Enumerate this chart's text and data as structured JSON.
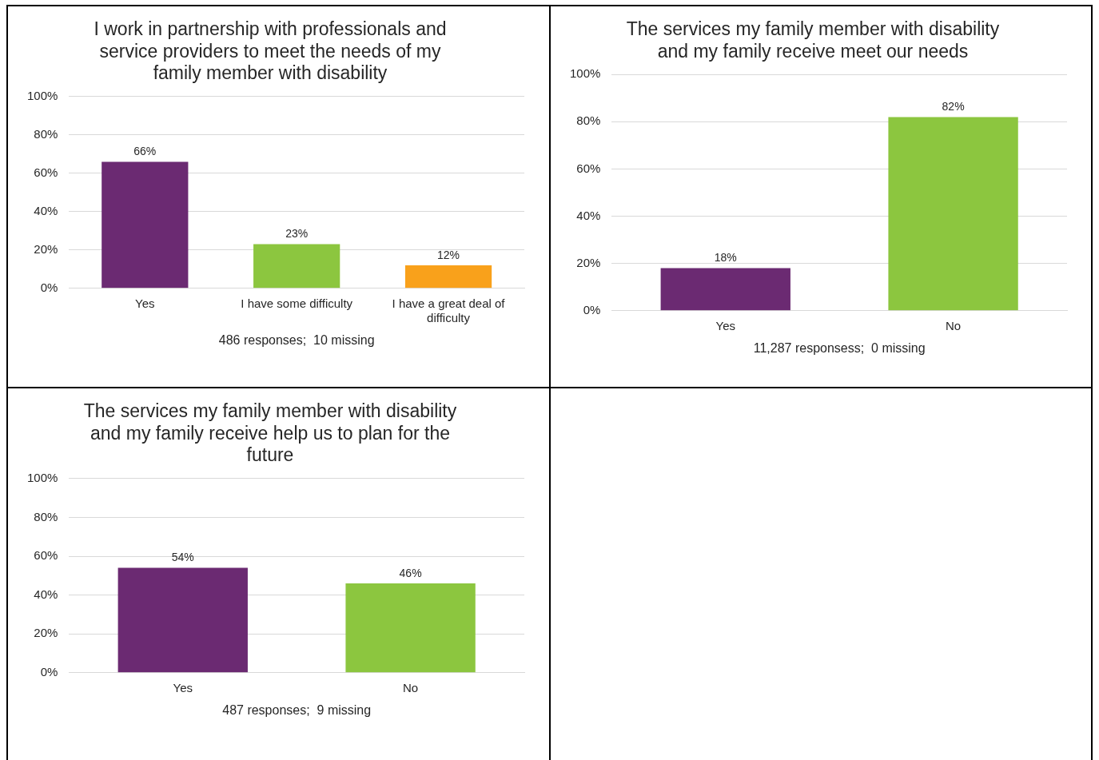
{
  "chart_data": [
    {
      "type": "bar",
      "title": "I work in partnership with professionals and service providers to meet the needs of my family member with disability",
      "xlabel": "486 responses;  10 missing",
      "categories": [
        "Yes",
        "I have some difficulty",
        "I have a great deal of difficulty"
      ],
      "values": [
        66,
        23,
        12
      ],
      "colors": [
        "#6b2a72",
        "#8cc63f",
        "#f9a11b"
      ],
      "value_labels": [
        "66%",
        "23%",
        "12%"
      ],
      "ylim": [
        0,
        100
      ],
      "yticks": [
        {
          "value": 0,
          "label": "0%"
        },
        {
          "value": 20,
          "label": "20%"
        },
        {
          "value": 40,
          "label": "40%"
        },
        {
          "value": 60,
          "label": "60%"
        },
        {
          "value": 80,
          "label": "80%"
        },
        {
          "value": 100,
          "label": "100%"
        }
      ],
      "grid": "y",
      "legend": false
    },
    {
      "type": "bar",
      "title": "The services my family member with disability and my family receive meet our needs",
      "xlabel": "11,287 responsess;  0 missing",
      "categories": [
        "Yes",
        "No"
      ],
      "values": [
        18,
        82
      ],
      "colors": [
        "#6b2a72",
        "#8cc63f"
      ],
      "value_labels": [
        "18%",
        "82%"
      ],
      "ylim": [
        0,
        100
      ],
      "yticks": [
        {
          "value": 0,
          "label": "0%"
        },
        {
          "value": 20,
          "label": "20%"
        },
        {
          "value": 40,
          "label": "40%"
        },
        {
          "value": 60,
          "label": "60%"
        },
        {
          "value": 80,
          "label": "80%"
        },
        {
          "value": 100,
          "label": "100%"
        }
      ],
      "grid": "y",
      "legend": false
    },
    {
      "type": "bar",
      "title": "The services my family member with disability and my family receive help us to plan for the future",
      "xlabel": "487 responses;  9 missing",
      "categories": [
        "Yes",
        "No"
      ],
      "values": [
        54,
        46
      ],
      "colors": [
        "#6b2a72",
        "#8cc63f"
      ],
      "value_labels": [
        "54%",
        "46%"
      ],
      "ylim": [
        0,
        100
      ],
      "yticks": [
        {
          "value": 0,
          "label": "0%"
        },
        {
          "value": 20,
          "label": "20%"
        },
        {
          "value": 40,
          "label": "40%"
        },
        {
          "value": 60,
          "label": "60%"
        },
        {
          "value": 80,
          "label": "80%"
        },
        {
          "value": 100,
          "label": "100%"
        }
      ],
      "grid": "y",
      "legend": false
    }
  ]
}
